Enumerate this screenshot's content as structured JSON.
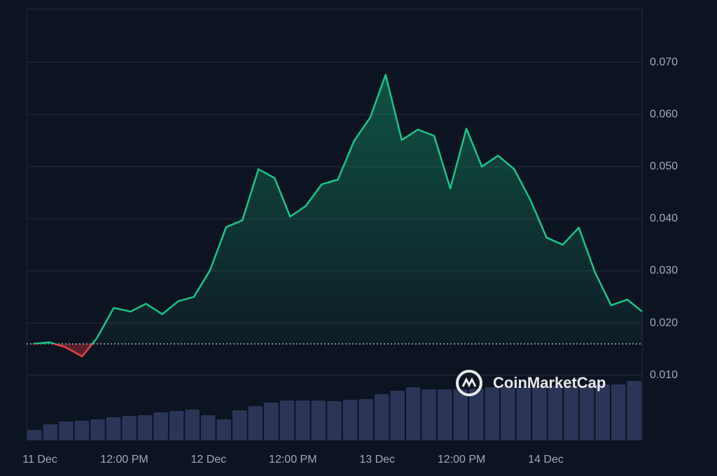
{
  "chart_data": {
    "type": "line",
    "x": [
      -1.0,
      1.3,
      3.6,
      6.0,
      8.1,
      10.5,
      12.9,
      15.1,
      17.4,
      19.7,
      21.9,
      24.2,
      26.5,
      28.8,
      31.1,
      33.4,
      35.6,
      37.8,
      40.1,
      42.4,
      44.7,
      47.0,
      49.2,
      51.5,
      53.8,
      56.1,
      58.4,
      60.7,
      62.9,
      65.2,
      67.5,
      69.8,
      72.1,
      74.4,
      76.7,
      79.0,
      81.3,
      83.6,
      85.7
    ],
    "values": [
      0.016,
      0.0163,
      0.0154,
      0.0136,
      0.0171,
      0.0229,
      0.0222,
      0.0237,
      0.0217,
      0.0242,
      0.025,
      0.0301,
      0.0384,
      0.0397,
      0.0495,
      0.0478,
      0.0404,
      0.0424,
      0.0466,
      0.0475,
      0.0549,
      0.0594,
      0.0676,
      0.0551,
      0.0571,
      0.0559,
      0.0458,
      0.0573,
      0.05,
      0.0521,
      0.0495,
      0.0436,
      0.0364,
      0.035,
      0.0383,
      0.0297,
      0.0234,
      0.0245,
      0.0222
    ],
    "volume": [
      15,
      23,
      27,
      28,
      30,
      33,
      35,
      36,
      40,
      42,
      44,
      36,
      30,
      43,
      49,
      54,
      57,
      57,
      57,
      56,
      58,
      59,
      66,
      71,
      76,
      73,
      73,
      73,
      74,
      76,
      77,
      77,
      78,
      78,
      78,
      78,
      80,
      80,
      85
    ],
    "volume_lim": [
      0,
      617
    ],
    "baseline": 0.016,
    "color_up": "#16c784",
    "color_down": "#ea3943",
    "volume_color": "#2b3557",
    "xlim": [
      -1.9,
      85.7
    ],
    "xticks": [
      {
        "value": 0,
        "label": "11 Dec"
      },
      {
        "value": 12,
        "label": "12:00 PM"
      },
      {
        "value": 24,
        "label": "12 Dec"
      },
      {
        "value": 36,
        "label": "12:00 PM"
      },
      {
        "value": 48,
        "label": "13 Dec"
      },
      {
        "value": 60,
        "label": "12:00 PM"
      },
      {
        "value": 72,
        "label": "14 Dec"
      }
    ],
    "ylim": [
      -0.0025,
      0.0802
    ],
    "yticks": [
      {
        "value": 0.01,
        "label": "0.010"
      },
      {
        "value": 0.02,
        "label": "0.020"
      },
      {
        "value": 0.03,
        "label": "0.030"
      },
      {
        "value": 0.04,
        "label": "0.040"
      },
      {
        "value": 0.05,
        "label": "0.050"
      },
      {
        "value": 0.06,
        "label": "0.060"
      },
      {
        "value": 0.07,
        "label": "0.070"
      }
    ],
    "grid": true,
    "watermark": "CoinMarketCap"
  }
}
